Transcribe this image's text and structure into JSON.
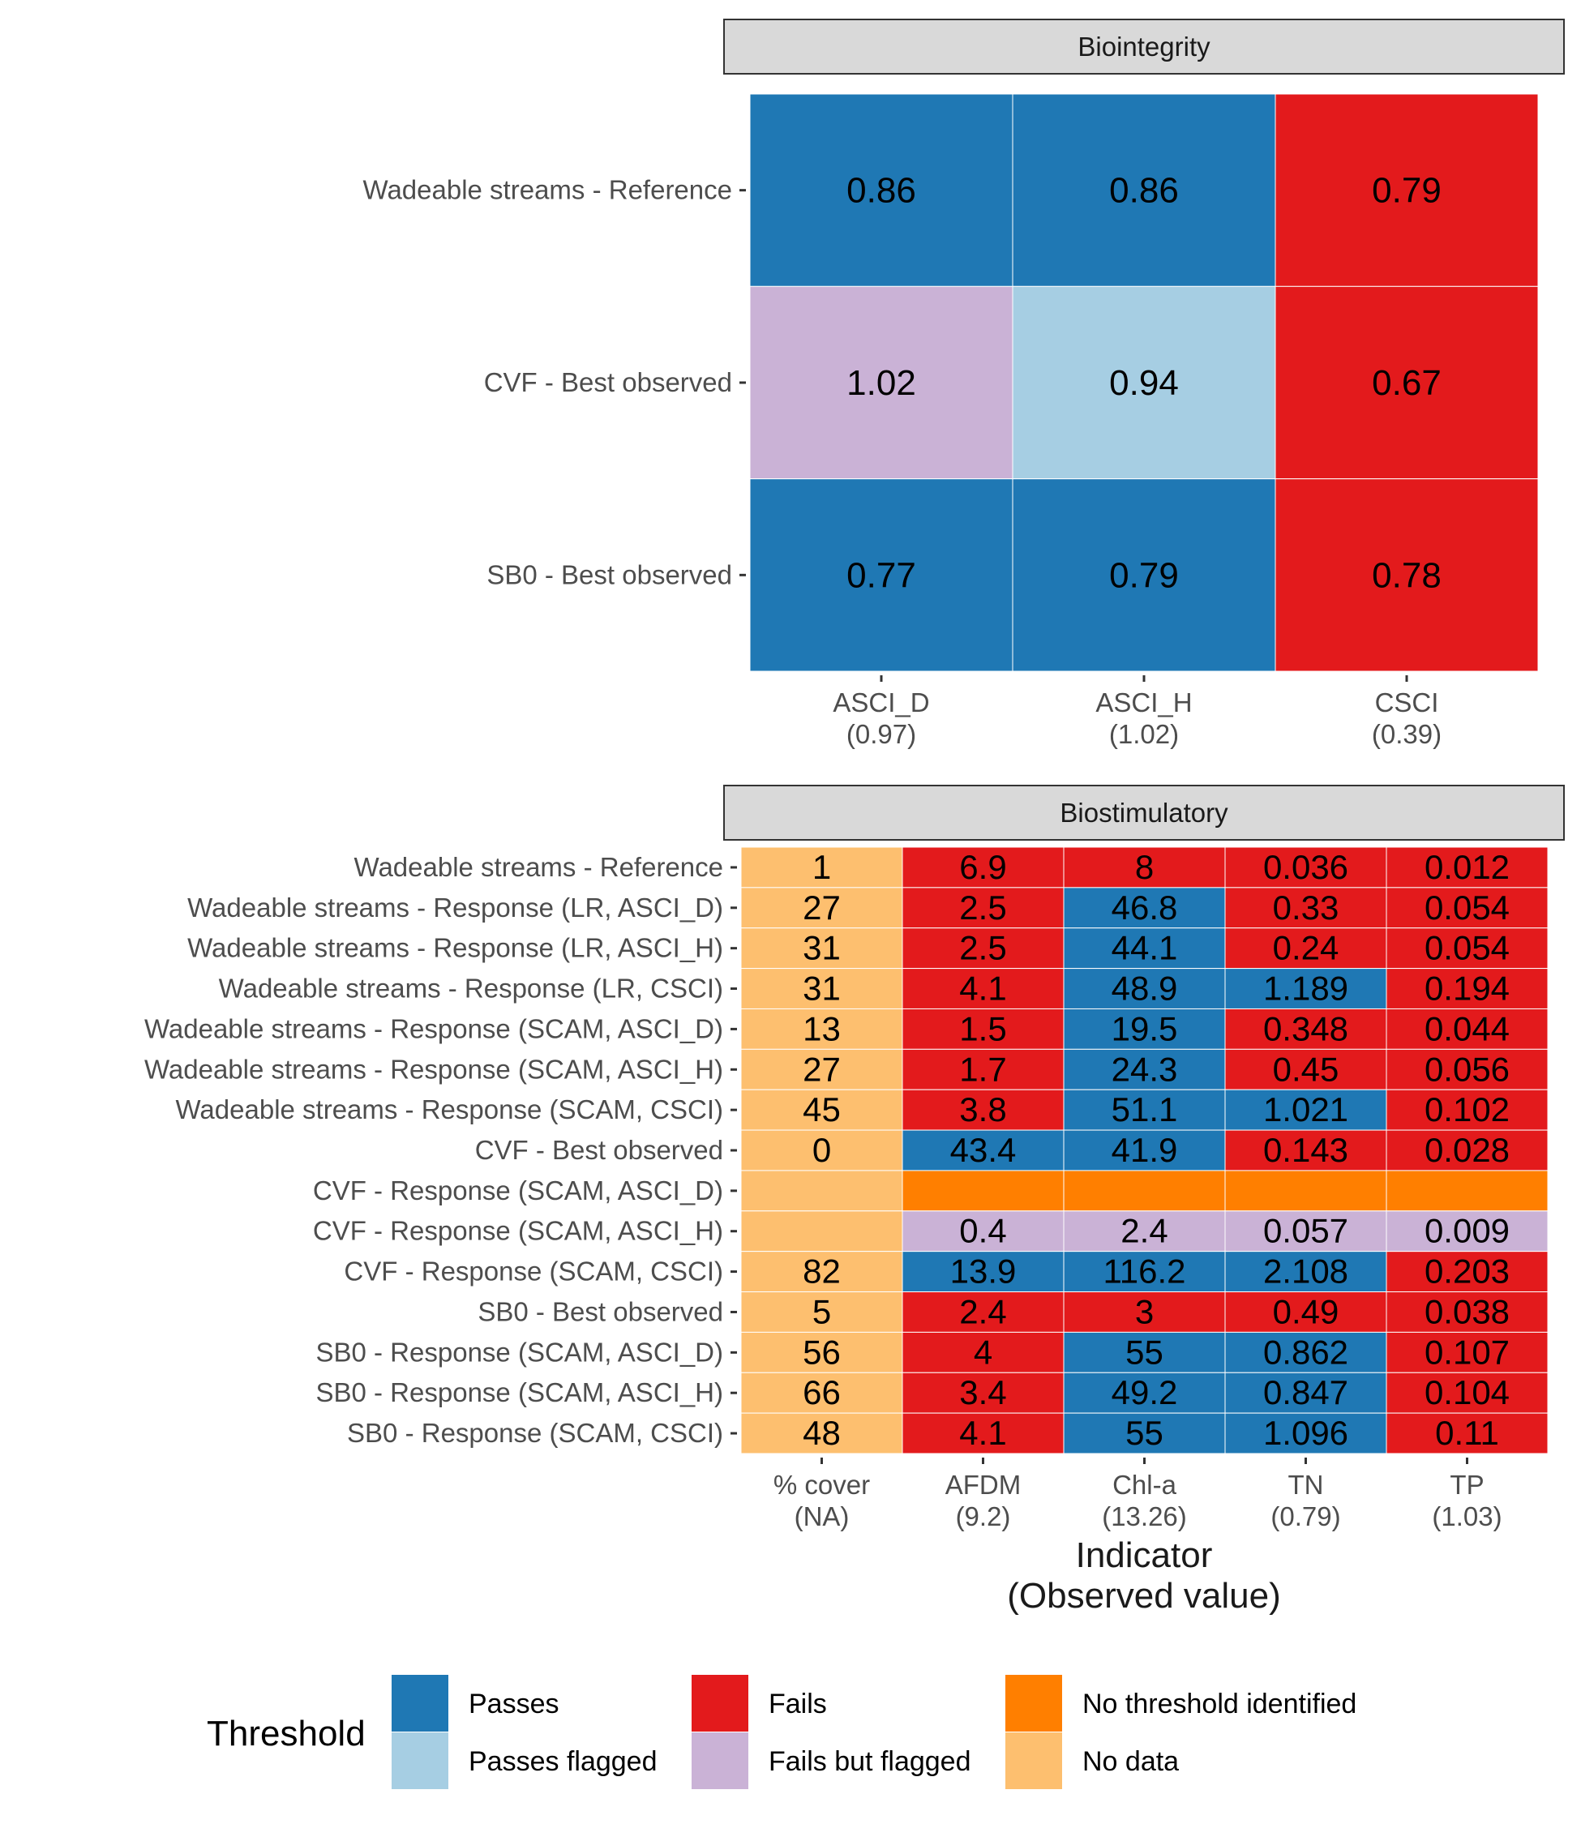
{
  "colors": {
    "passes": "#1F78B4",
    "passes_flagged": "#A6CEE3",
    "fails": "#E31A1C",
    "fails_flagged": "#CAB2D6",
    "no_threshold": "#FF7F00",
    "no_data": "#FDBF6F"
  },
  "chart_data": [
    {
      "type": "heatmap",
      "panel": "Biointegrity",
      "columns": [
        {
          "name": "ASCI_D",
          "observed": "(0.97)"
        },
        {
          "name": "ASCI_H",
          "observed": "(1.02)"
        },
        {
          "name": "CSCI",
          "observed": "(0.39)"
        }
      ],
      "rows": [
        {
          "label": "Wadeable streams - Reference",
          "values": [
            "0.86",
            "0.86",
            "0.79"
          ],
          "status": [
            "passes",
            "passes",
            "fails"
          ]
        },
        {
          "label": "CVF - Best observed",
          "values": [
            "1.02",
            "0.94",
            "0.67"
          ],
          "status": [
            "fails_flagged",
            "passes_flagged",
            "fails"
          ]
        },
        {
          "label": "SB0 - Best observed",
          "values": [
            "0.77",
            "0.79",
            "0.78"
          ],
          "status": [
            "passes",
            "passes",
            "fails"
          ]
        }
      ]
    },
    {
      "type": "heatmap",
      "panel": "Biostimulatory",
      "columns": [
        {
          "name": "% cover",
          "observed": "(NA)"
        },
        {
          "name": "AFDM",
          "observed": "(9.2)"
        },
        {
          "name": "Chl-a",
          "observed": "(13.26)"
        },
        {
          "name": "TN",
          "observed": "(0.79)"
        },
        {
          "name": "TP",
          "observed": "(1.03)"
        }
      ],
      "rows": [
        {
          "label": "Wadeable streams - Reference",
          "values": [
            "1",
            "6.9",
            "8",
            "0.036",
            "0.012"
          ],
          "status": [
            "no_data",
            "fails",
            "fails",
            "fails",
            "fails"
          ]
        },
        {
          "label": "Wadeable streams - Response (LR, ASCI_D)",
          "values": [
            "27",
            "2.5",
            "46.8",
            "0.33",
            "0.054"
          ],
          "status": [
            "no_data",
            "fails",
            "passes",
            "fails",
            "fails"
          ]
        },
        {
          "label": "Wadeable streams - Response (LR, ASCI_H)",
          "values": [
            "31",
            "2.5",
            "44.1",
            "0.24",
            "0.054"
          ],
          "status": [
            "no_data",
            "fails",
            "passes",
            "fails",
            "fails"
          ]
        },
        {
          "label": "Wadeable streams - Response (LR, CSCI)",
          "values": [
            "31",
            "4.1",
            "48.9",
            "1.189",
            "0.194"
          ],
          "status": [
            "no_data",
            "fails",
            "passes",
            "passes",
            "fails"
          ]
        },
        {
          "label": "Wadeable streams - Response (SCAM, ASCI_D)",
          "values": [
            "13",
            "1.5",
            "19.5",
            "0.348",
            "0.044"
          ],
          "status": [
            "no_data",
            "fails",
            "passes",
            "fails",
            "fails"
          ]
        },
        {
          "label": "Wadeable streams - Response (SCAM, ASCI_H)",
          "values": [
            "27",
            "1.7",
            "24.3",
            "0.45",
            "0.056"
          ],
          "status": [
            "no_data",
            "fails",
            "passes",
            "fails",
            "fails"
          ]
        },
        {
          "label": "Wadeable streams - Response (SCAM, CSCI)",
          "values": [
            "45",
            "3.8",
            "51.1",
            "1.021",
            "0.102"
          ],
          "status": [
            "no_data",
            "fails",
            "passes",
            "passes",
            "fails"
          ]
        },
        {
          "label": "CVF - Best observed",
          "values": [
            "0",
            "43.4",
            "41.9",
            "0.143",
            "0.028"
          ],
          "status": [
            "no_data",
            "passes",
            "passes",
            "fails",
            "fails"
          ]
        },
        {
          "label": "CVF - Response (SCAM, ASCI_D)",
          "values": [
            "",
            "",
            "",
            "",
            ""
          ],
          "status": [
            "no_data",
            "no_threshold",
            "no_threshold",
            "no_threshold",
            "no_threshold"
          ]
        },
        {
          "label": "CVF - Response (SCAM, ASCI_H)",
          "values": [
            "",
            "0.4",
            "2.4",
            "0.057",
            "0.009"
          ],
          "status": [
            "no_data",
            "fails_flagged",
            "fails_flagged",
            "fails_flagged",
            "fails_flagged"
          ]
        },
        {
          "label": "CVF - Response (SCAM, CSCI)",
          "values": [
            "82",
            "13.9",
            "116.2",
            "2.108",
            "0.203"
          ],
          "status": [
            "no_data",
            "passes",
            "passes",
            "passes",
            "fails"
          ]
        },
        {
          "label": "SB0 - Best observed",
          "values": [
            "5",
            "2.4",
            "3",
            "0.49",
            "0.038"
          ],
          "status": [
            "no_data",
            "fails",
            "fails",
            "fails",
            "fails"
          ]
        },
        {
          "label": "SB0 - Response (SCAM, ASCI_D)",
          "values": [
            "56",
            "4",
            "55",
            "0.862",
            "0.107"
          ],
          "status": [
            "no_data",
            "fails",
            "passes",
            "passes",
            "fails"
          ]
        },
        {
          "label": "SB0 - Response (SCAM, ASCI_H)",
          "values": [
            "66",
            "3.4",
            "49.2",
            "0.847",
            "0.104"
          ],
          "status": [
            "no_data",
            "fails",
            "passes",
            "passes",
            "fails"
          ]
        },
        {
          "label": "SB0 - Response (SCAM, CSCI)",
          "values": [
            "48",
            "4.1",
            "55",
            "1.096",
            "0.11"
          ],
          "status": [
            "no_data",
            "fails",
            "passes",
            "passes",
            "fails"
          ]
        }
      ]
    }
  ],
  "axis": {
    "title_line1": "Indicator",
    "title_line2": "(Observed value)"
  },
  "legend": {
    "title": "Threshold",
    "items": [
      {
        "key": "passes",
        "label": "Passes"
      },
      {
        "key": "passes_flagged",
        "label": "Passes flagged"
      },
      {
        "key": "fails",
        "label": "Fails"
      },
      {
        "key": "fails_flagged",
        "label": "Fails but flagged"
      },
      {
        "key": "no_threshold",
        "label": "No threshold identified"
      },
      {
        "key": "no_data",
        "label": "No data"
      }
    ]
  }
}
